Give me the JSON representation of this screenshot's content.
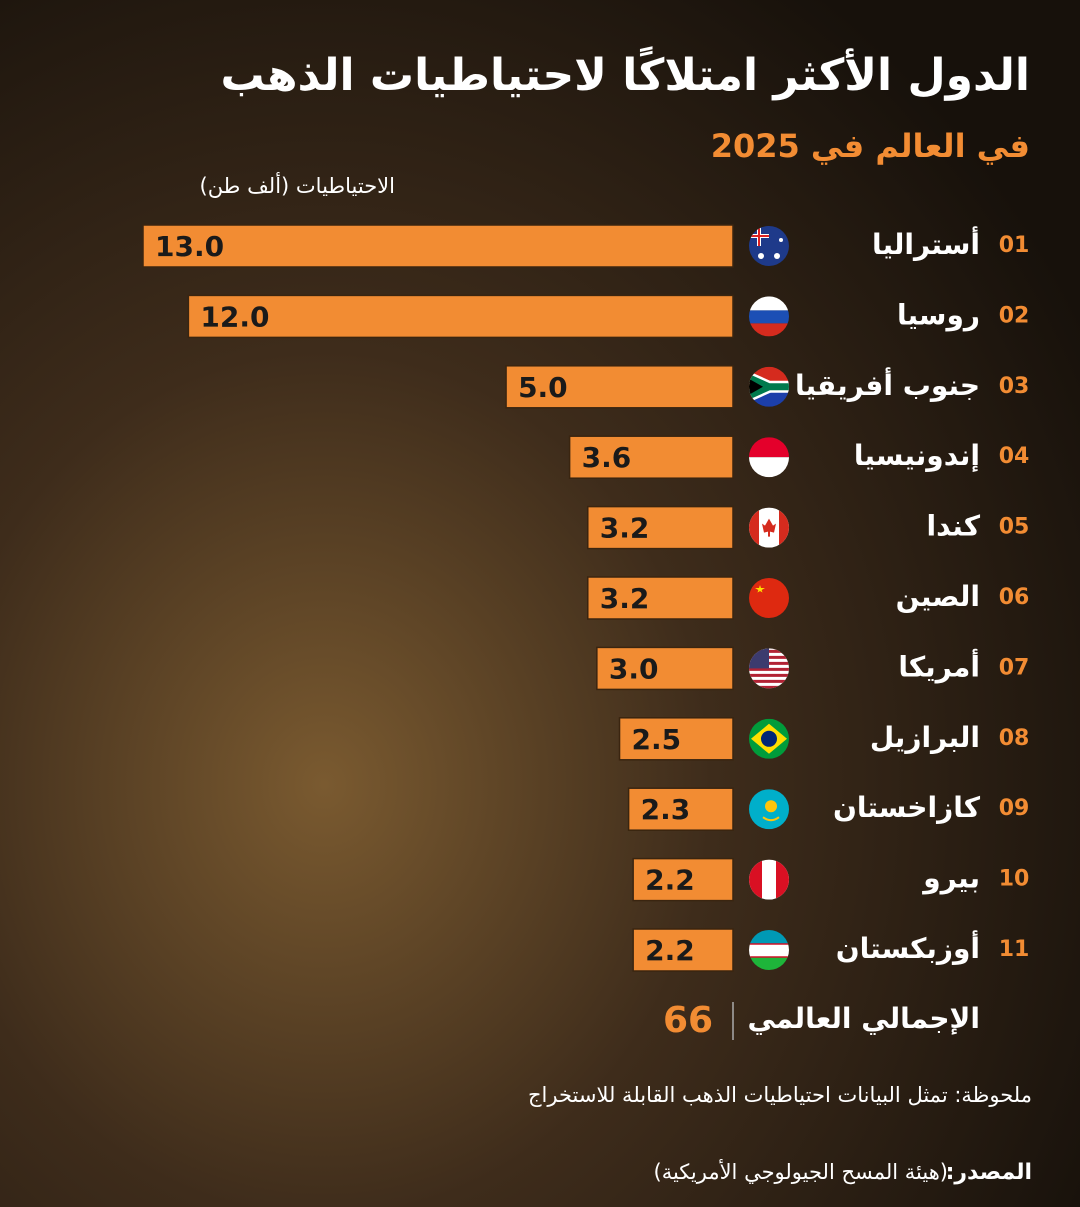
{
  "chart_data": {
    "type": "bar",
    "orientation": "horizontal",
    "title": "الدول الأكثر امتلاكًا لاحتياطيات الذهب",
    "subtitle": "في العالم في 2025",
    "axis_label": "الاحتياطيات (ألف طن)",
    "ranks": [
      "01",
      "02",
      "03",
      "04",
      "05",
      "06",
      "07",
      "08",
      "09",
      "10",
      "11"
    ],
    "categories": [
      "أستراليا",
      "روسيا",
      "جنوب أفريقيا",
      "إندونيسيا",
      "كندا",
      "الصين",
      "أمريكا",
      "البرازيل",
      "كازاخستان",
      "بيرو",
      "أوزبكستان"
    ],
    "values": [
      13.0,
      12.0,
      5.0,
      3.6,
      3.2,
      3.2,
      3.0,
      2.5,
      2.3,
      2.2,
      2.2
    ],
    "value_labels": [
      "13.0",
      "12.0",
      "5.0",
      "3.6",
      "3.2",
      "3.2",
      "3.0",
      "2.5",
      "2.3",
      "2.2",
      "2.2"
    ],
    "color": "#f28c33",
    "xlim": [
      0,
      13
    ],
    "total_label": "الإجمالي العالمي",
    "total_value": 66,
    "note": "ملحوظة: تمثل البيانات احتياطيات الذهب القابلة للاستخراج",
    "source_label": "المصدر:",
    "source_text": "(هيئة المسح الجيولوجي الأمريكية)"
  }
}
